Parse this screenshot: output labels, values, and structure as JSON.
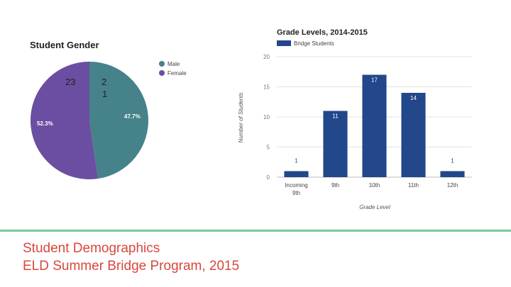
{
  "colors": {
    "male": "#45828a",
    "female": "#6b4ea1",
    "bar": "#22478a",
    "accent_line": "#7ccb94",
    "footer_text": "#d9473c",
    "grid": "#e3e3e3"
  },
  "chart_data": [
    {
      "type": "pie",
      "title": "Student Gender",
      "legend": "right",
      "slices": [
        {
          "name": "Male",
          "percent": 47.7,
          "label": "47.7%"
        },
        {
          "name": "Female",
          "percent": 52.3,
          "label": "52.3%"
        }
      ],
      "annotations": [
        "23",
        "2",
        "1"
      ]
    },
    {
      "type": "bar",
      "title": "Grade Levels, 2014-2015",
      "series": [
        {
          "name": "Bridge Students",
          "values": [
            1,
            11,
            17,
            14,
            1
          ]
        }
      ],
      "categories": [
        [
          "Incoming",
          "9th"
        ],
        [
          "9th"
        ],
        [
          "10th"
        ],
        [
          "11th"
        ],
        [
          "12th"
        ]
      ],
      "value_labels": [
        "1",
        "11",
        "17",
        "14",
        "1"
      ],
      "yticks": [
        "0",
        "5",
        "10",
        "15",
        "20"
      ],
      "ylim": [
        0,
        20
      ],
      "xlabel": "Grade Level",
      "ylabel": "Number of Students",
      "legend": "top-left"
    }
  ],
  "footer": {
    "line1": "Student Demographics",
    "line2": "ELD Summer Bridge Program, 2015"
  }
}
